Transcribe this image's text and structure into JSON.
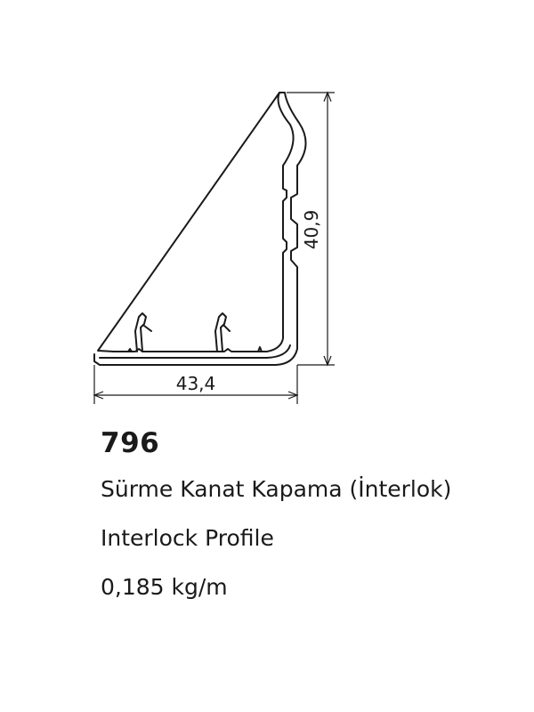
{
  "drawing": {
    "width_dimension": "43,4",
    "height_dimension": "40,9"
  },
  "product": {
    "code": "796",
    "name_tr": "Sürme Kanat Kapama (İnterlok)",
    "name_en": "Interlock Profile",
    "weight": "0,185 kg/m"
  },
  "colors": {
    "line": "#1a1a1a",
    "background": "#ffffff"
  }
}
